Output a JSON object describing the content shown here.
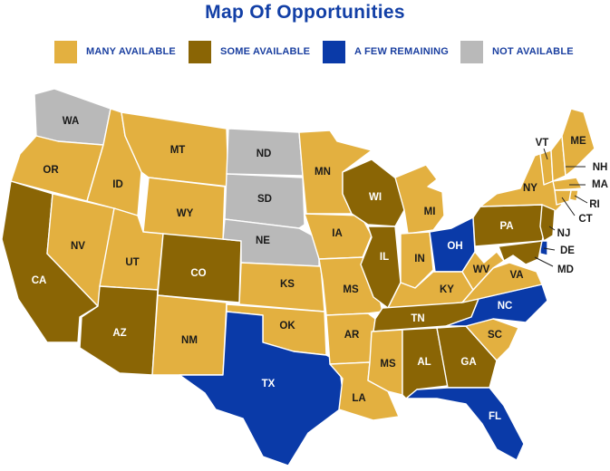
{
  "title": "Map Of Opportunities",
  "colors": {
    "many": "#e3b040",
    "some": "#8a6505",
    "few": "#0a3aa8",
    "none": "#b9b9b9"
  },
  "legend": [
    {
      "key": "many",
      "label": "MANY AVAILABLE"
    },
    {
      "key": "some",
      "label": "SOME AVAILABLE"
    },
    {
      "key": "few",
      "label": "A FEW REMAINING"
    },
    {
      "key": "none",
      "label": "NOT AVAILABLE"
    }
  ],
  "states": {
    "WA": "none",
    "OR": "many",
    "CA": "some",
    "NV": "many",
    "ID": "many",
    "MT": "many",
    "WY": "many",
    "UT": "many",
    "AZ": "some",
    "CO": "some",
    "NM": "many",
    "ND": "none",
    "SD": "none",
    "NE": "none",
    "KS": "many",
    "OK": "many",
    "TX": "few",
    "MN": "many",
    "IA": "many",
    "MS": "many",
    "AR": "many",
    "LA": "many",
    "WI": "some",
    "IL": "some",
    "MI": "many",
    "IN": "many",
    "OH": "few",
    "KY": "many",
    "TN": "some",
    "MSS": "many",
    "AL": "some",
    "GA": "some",
    "FL": "few",
    "SC": "many",
    "NC": "few",
    "VA": "many",
    "WV": "many",
    "PA": "some",
    "NY": "many",
    "VT": "many",
    "NH": "many",
    "ME": "many",
    "MA": "many",
    "RI": "many",
    "CT": "many",
    "NJ": "some",
    "DE": "few",
    "MD": "some"
  },
  "labels": {
    "WA": "WA",
    "OR": "OR",
    "CA": "CA",
    "NV": "NV",
    "ID": "ID",
    "MT": "MT",
    "WY": "WY",
    "UT": "UT",
    "AZ": "AZ",
    "CO": "CO",
    "NM": "NM",
    "ND": "ND",
    "SD": "SD",
    "NE": "NE",
    "KS": "KS",
    "OK": "OK",
    "TX": "TX",
    "MN": "MN",
    "IA": "IA",
    "MS": "MS",
    "AR": "AR",
    "LA": "LA",
    "WI": "WI",
    "IL": "IL",
    "MI": "MI",
    "IN": "IN",
    "OH": "OH",
    "KY": "KY",
    "TN": "TN",
    "MSS": "MS",
    "AL": "AL",
    "GA": "GA",
    "FL": "FL",
    "SC": "SC",
    "NC": "NC",
    "VA": "VA",
    "WV": "WV",
    "PA": "PA",
    "NY": "NY",
    "VT": "VT",
    "NH": "NH",
    "ME": "ME",
    "MA": "MA",
    "RI": "RI",
    "CT": "CT",
    "NJ": "NJ",
    "DE": "DE",
    "MD": "MD"
  }
}
